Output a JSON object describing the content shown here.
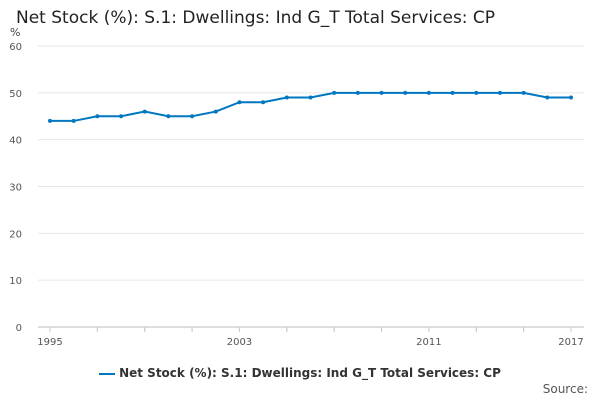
{
  "chart_data": {
    "type": "line",
    "title": "Net Stock (%): S.1: Dwellings: Ind G_T Total Services: CP",
    "ylabel": "%",
    "x": [
      1995,
      1996,
      1997,
      1998,
      1999,
      2000,
      2001,
      2002,
      2003,
      2004,
      2005,
      2006,
      2007,
      2008,
      2009,
      2010,
      2011,
      2012,
      2013,
      2014,
      2015,
      2016,
      2017
    ],
    "series": [
      {
        "name": "Net Stock (%): S.1: Dwellings: Ind G_T Total Services: CP",
        "values": [
          44,
          44,
          45,
          45,
          46,
          45,
          45,
          46,
          48,
          48,
          49,
          49,
          50,
          50,
          50,
          50,
          50,
          50,
          50,
          50,
          50,
          49,
          49
        ]
      }
    ],
    "ylim": [
      0,
      60
    ],
    "yticks": [
      "0",
      "10",
      "20",
      "30",
      "40",
      "50",
      "60"
    ],
    "xticks": [
      "1995",
      "2003",
      "2011",
      "2017"
    ],
    "grid": true,
    "legend": "bottom",
    "color": "#0077c0"
  },
  "source_label": "Source:"
}
